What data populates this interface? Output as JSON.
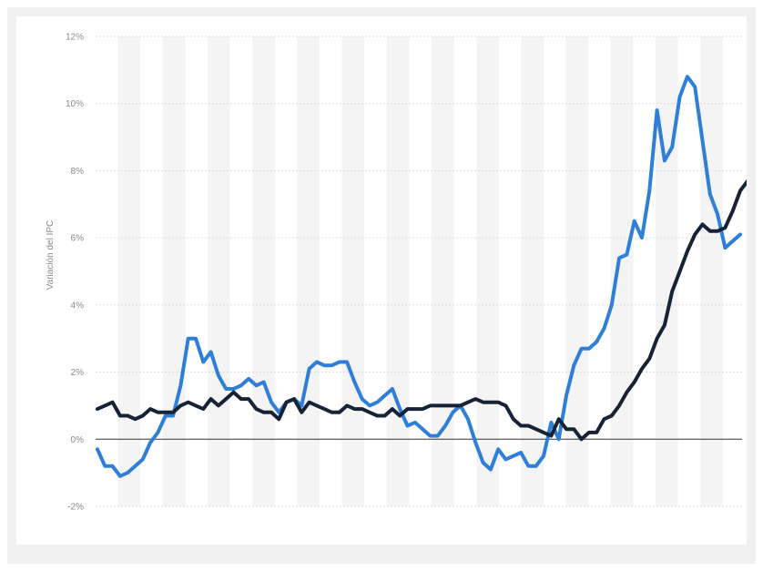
{
  "chart_data": {
    "type": "line",
    "title": "",
    "xlabel": "",
    "ylabel": "Variación del IPC",
    "ylim": [
      -2,
      12
    ],
    "yticks": [
      -2,
      0,
      2,
      4,
      6,
      8,
      10,
      12
    ],
    "ytick_labels": [
      "-2%",
      "0%",
      "2%",
      "4%",
      "6%",
      "8%",
      "10%",
      "12%"
    ],
    "grid": true,
    "legend": "none",
    "colors": {
      "series_1": "#2f7ed8",
      "series_2": "#162336",
      "zero_line": "#333333",
      "grid": "#dcdcdc",
      "band": "#f4f4f4"
    },
    "series": [
      {
        "values": [
          -0.3,
          -0.8,
          -0.8,
          -1.1,
          -1.0,
          -0.8,
          -0.6,
          -0.1,
          0.2,
          0.7,
          0.7,
          1.6,
          3.0,
          3.0,
          2.3,
          2.6,
          1.9,
          1.5,
          1.5,
          1.6,
          1.8,
          1.6,
          1.7,
          1.1,
          0.8,
          1.1,
          1.2,
          1.0,
          2.1,
          2.3,
          2.2,
          2.2,
          2.3,
          2.3,
          1.7,
          1.2,
          1.0,
          1.1,
          1.3,
          1.5,
          0.9,
          0.4,
          0.5,
          0.3,
          0.1,
          0.1,
          0.4,
          0.8,
          1.0,
          0.6,
          -0.1,
          -0.7,
          -0.9,
          -0.3,
          -0.6,
          -0.5,
          -0.4,
          -0.8,
          -0.8,
          -0.5,
          0.5,
          0.0,
          1.3,
          2.2,
          2.7,
          2.7,
          2.9,
          3.3,
          4.0,
          5.4,
          5.5,
          6.5,
          6.0,
          7.4,
          9.8,
          8.3,
          8.7,
          10.2,
          10.8,
          10.5,
          8.9,
          7.3,
          6.7,
          5.7,
          5.9,
          6.1
        ]
      },
      {
        "values": [
          0.9,
          1.0,
          1.1,
          0.7,
          0.7,
          0.6,
          0.7,
          0.9,
          0.8,
          0.8,
          0.8,
          1.0,
          1.1,
          1.0,
          0.9,
          1.2,
          1.0,
          1.2,
          1.4,
          1.2,
          1.2,
          0.9,
          0.8,
          0.8,
          0.6,
          1.1,
          1.2,
          0.8,
          1.1,
          1.0,
          0.9,
          0.8,
          0.8,
          1.0,
          0.9,
          0.9,
          0.8,
          0.7,
          0.7,
          0.9,
          0.7,
          0.9,
          0.9,
          0.9,
          1.0,
          1.0,
          1.0,
          1.0,
          1.0,
          1.1,
          1.2,
          1.1,
          1.1,
          1.1,
          1.0,
          0.6,
          0.4,
          0.4,
          0.3,
          0.2,
          0.1,
          0.6,
          0.3,
          0.3,
          0.0,
          0.2,
          0.2,
          0.6,
          0.7,
          1.0,
          1.4,
          1.7,
          2.1,
          2.4,
          3.0,
          3.4,
          4.4,
          5.0,
          5.6,
          6.1,
          6.4,
          6.2,
          6.2,
          6.3,
          6.8,
          7.4,
          7.7
        ]
      }
    ]
  }
}
